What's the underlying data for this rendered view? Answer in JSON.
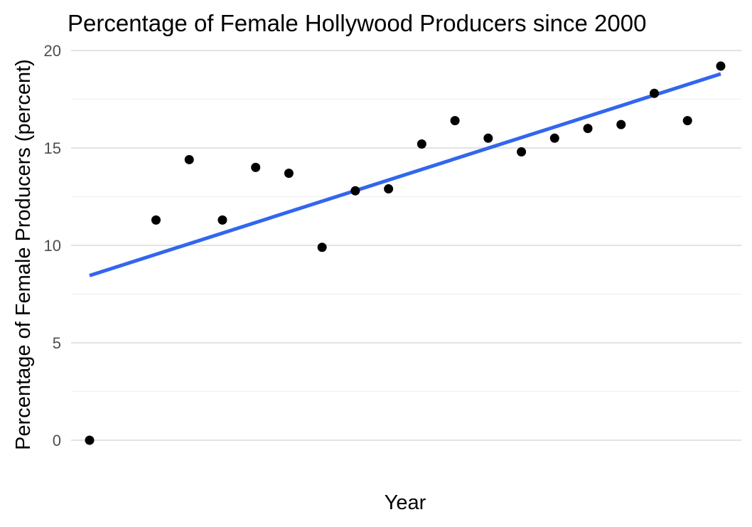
{
  "chart_data": {
    "type": "scatter",
    "title": "Percentage of Female Hollywood Producers since 2000",
    "xlabel": "Year",
    "ylabel": "Percentage of Female Producers (percent)",
    "x_ticks_visible": false,
    "ylim": [
      -0.5,
      20
    ],
    "y_ticks": [
      0,
      5,
      10,
      15,
      20
    ],
    "y_tick_labels": [
      "0",
      "5",
      "10",
      "15",
      "20"
    ],
    "grid": "horizontal",
    "x": [
      1,
      2,
      3,
      4,
      5,
      6,
      7,
      8,
      9,
      10,
      11,
      12,
      13,
      14,
      15,
      16,
      17,
      18,
      19,
      20
    ],
    "series": [
      {
        "values": [
          0,
          11.3,
          14.4,
          11.3,
          14.0,
          13.7,
          9.9,
          12.8,
          12.9,
          15.2,
          16.4,
          15.5,
          14.8,
          15.5,
          16.0,
          16.2,
          17.8,
          16.4,
          19.2
        ],
        "x": [
          1,
          3,
          4,
          5,
          6,
          7,
          8,
          9,
          10,
          11,
          12,
          13,
          14,
          15,
          16,
          17,
          18,
          19,
          20
        ],
        "color": "#000000",
        "style": "points"
      }
    ],
    "trend_line": {
      "type": "linear",
      "x_start": 1,
      "x_end": 20,
      "y_start": 8.45,
      "y_end": 18.8,
      "color": "#3366ee"
    }
  }
}
